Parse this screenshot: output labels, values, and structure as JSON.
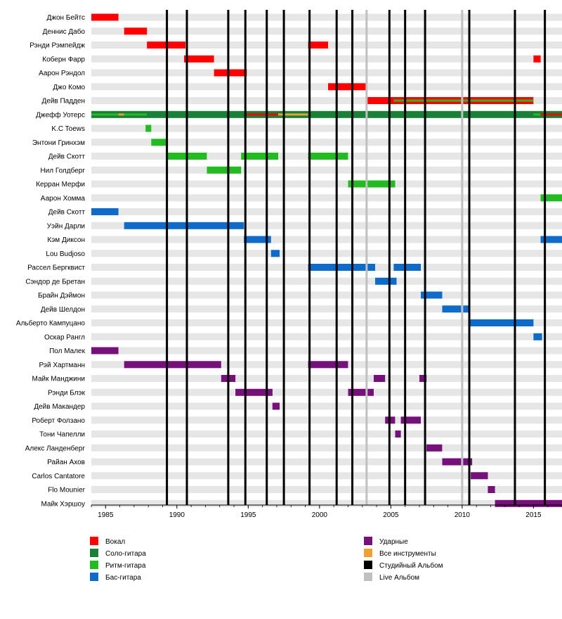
{
  "chart_data": {
    "type": "timeline",
    "xlim": [
      1984,
      2017
    ],
    "x_ticks": [
      1985,
      1990,
      1995,
      2000,
      2005,
      2010,
      2015
    ],
    "members": [
      {
        "name": "Джон Бейтс",
        "bars": [
          {
            "role": "vocals",
            "start": 1984.0,
            "end": 1985.9
          }
        ]
      },
      {
        "name": "Деннис Дабо",
        "bars": [
          {
            "role": "vocals",
            "start": 1986.3,
            "end": 1987.9
          }
        ]
      },
      {
        "name": "Рэнди Рэмпейдж",
        "bars": [
          {
            "role": "vocals",
            "start": 1987.9,
            "end": 1990.6
          },
          {
            "role": "vocals",
            "start": 1999.2,
            "end": 2000.6
          }
        ]
      },
      {
        "name": "Коберн Фарр",
        "bars": [
          {
            "role": "vocals",
            "start": 1990.5,
            "end": 1992.6
          },
          {
            "role": "vocals",
            "start": 2015.0,
            "end": 2015.5
          }
        ]
      },
      {
        "name": "Аарон Рэндол",
        "bars": [
          {
            "role": "vocals",
            "start": 1992.6,
            "end": 1994.9
          }
        ]
      },
      {
        "name": "Джо Комо",
        "bars": [
          {
            "role": "vocals",
            "start": 2000.6,
            "end": 2003.3
          }
        ]
      },
      {
        "name": "Дейв Падден",
        "bars": [
          {
            "role": "vocals",
            "start": 2003.3,
            "end": 2015.0
          },
          {
            "role": "rhythm",
            "start": 2005.2,
            "end": 2015.0,
            "thin": true
          }
        ]
      },
      {
        "name": "Джефф Уотерс",
        "bars": [
          {
            "role": "lead",
            "start": 1984.0,
            "end": 2017.0
          },
          {
            "role": "rhythm",
            "start": 1984.0,
            "end": 1985.9,
            "thin": true
          },
          {
            "role": "all",
            "start": 1985.9,
            "end": 1986.3,
            "thin": true
          },
          {
            "role": "rhythm",
            "start": 1986.3,
            "end": 1987.9,
            "thin": true
          },
          {
            "role": "vocals",
            "start": 1994.9,
            "end": 1997.1,
            "thin": true
          },
          {
            "role": "all",
            "start": 1997.1,
            "end": 1999.2,
            "thin": true
          },
          {
            "role": "rhythm",
            "start": 2015.0,
            "end": 2015.5,
            "thin": true
          },
          {
            "role": "vocals",
            "start": 2015.5,
            "end": 2017.0,
            "thin": true
          }
        ]
      },
      {
        "name": "K.C Toews",
        "bars": [
          {
            "role": "rhythm",
            "start": 1987.8,
            "end": 1988.2
          }
        ]
      },
      {
        "name": "Энтони Гринхэм",
        "bars": [
          {
            "role": "rhythm",
            "start": 1988.2,
            "end": 1989.3
          }
        ]
      },
      {
        "name": "Дейв Скотт",
        "bars": [
          {
            "role": "rhythm",
            "start": 1989.3,
            "end": 1992.1
          },
          {
            "role": "rhythm",
            "start": 1994.5,
            "end": 1997.1
          },
          {
            "role": "rhythm",
            "start": 1999.2,
            "end": 2002.0
          }
        ]
      },
      {
        "name": "Нил Голдберг",
        "bars": [
          {
            "role": "rhythm",
            "start": 1992.1,
            "end": 1994.5
          }
        ]
      },
      {
        "name": "Керран Мерфи",
        "bars": [
          {
            "role": "rhythm",
            "start": 2002.0,
            "end": 2005.3
          }
        ]
      },
      {
        "name": "Аарон Хомма",
        "bars": [
          {
            "role": "rhythm",
            "start": 2015.5,
            "end": 2017.0
          }
        ]
      },
      {
        "name": "Дейв Скотт",
        "bars": [
          {
            "role": "bass",
            "start": 1984.0,
            "end": 1985.9
          }
        ]
      },
      {
        "name": "Уэйн Дарли",
        "bars": [
          {
            "role": "bass",
            "start": 1986.3,
            "end": 1994.7
          }
        ]
      },
      {
        "name": "Кэм Диксон",
        "bars": [
          {
            "role": "bass",
            "start": 1994.7,
            "end": 1996.6
          },
          {
            "role": "bass",
            "start": 2015.5,
            "end": 2017.0
          }
        ]
      },
      {
        "name": "Lou Budjoso",
        "bars": [
          {
            "role": "bass",
            "start": 1996.6,
            "end": 1997.2
          }
        ]
      },
      {
        "name": "Рассел Бергквист",
        "bars": [
          {
            "role": "bass",
            "start": 1999.2,
            "end": 2003.9
          },
          {
            "role": "bass",
            "start": 2005.2,
            "end": 2007.1
          }
        ]
      },
      {
        "name": "Сэндор де Бретан",
        "bars": [
          {
            "role": "bass",
            "start": 2003.9,
            "end": 2005.4
          }
        ]
      },
      {
        "name": "Брайн Дэймон",
        "bars": [
          {
            "role": "bass",
            "start": 2007.1,
            "end": 2008.6
          }
        ]
      },
      {
        "name": "Дейв Шелдон",
        "bars": [
          {
            "role": "bass",
            "start": 2008.6,
            "end": 2010.5
          }
        ]
      },
      {
        "name": "Альберто Кампуцано",
        "bars": [
          {
            "role": "bass",
            "start": 2010.5,
            "end": 2015.0
          }
        ]
      },
      {
        "name": "Оскар Рангл",
        "bars": [
          {
            "role": "bass",
            "start": 2015.0,
            "end": 2015.6
          }
        ]
      },
      {
        "name": "Пол Малек",
        "bars": [
          {
            "role": "drums",
            "start": 1984.0,
            "end": 1985.9
          }
        ]
      },
      {
        "name": "Рэй Хартманн",
        "bars": [
          {
            "role": "drums",
            "start": 1986.3,
            "end": 1993.1
          },
          {
            "role": "drums",
            "start": 1999.2,
            "end": 2002.0
          }
        ]
      },
      {
        "name": "Майк Манджини",
        "bars": [
          {
            "role": "drums",
            "start": 1993.1,
            "end": 1994.1
          },
          {
            "role": "drums",
            "start": 2003.8,
            "end": 2004.6
          },
          {
            "role": "drums",
            "start": 2007.0,
            "end": 2007.5
          }
        ]
      },
      {
        "name": "Рэнди Блэк",
        "bars": [
          {
            "role": "drums",
            "start": 1994.1,
            "end": 1996.7
          },
          {
            "role": "drums",
            "start": 2002.0,
            "end": 2003.8
          }
        ]
      },
      {
        "name": "Дейв Макандер",
        "bars": [
          {
            "role": "drums",
            "start": 1996.7,
            "end": 1997.2
          }
        ]
      },
      {
        "name": "Роберт Фолзано",
        "bars": [
          {
            "role": "drums",
            "start": 2004.6,
            "end": 2005.3
          },
          {
            "role": "drums",
            "start": 2005.7,
            "end": 2007.1
          }
        ]
      },
      {
        "name": "Тони Чапелли",
        "bars": [
          {
            "role": "drums",
            "start": 2005.3,
            "end": 2005.7
          }
        ]
      },
      {
        "name": "Алекс Ланденберг",
        "bars": [
          {
            "role": "drums",
            "start": 2007.5,
            "end": 2008.6
          }
        ]
      },
      {
        "name": "Райан Ахов",
        "bars": [
          {
            "role": "drums",
            "start": 2008.6,
            "end": 2010.7
          }
        ]
      },
      {
        "name": "Carlos Cantatore",
        "bars": [
          {
            "role": "drums",
            "start": 2010.6,
            "end": 2011.8
          }
        ]
      },
      {
        "name": "Flo Mounier",
        "bars": [
          {
            "role": "drums",
            "start": 2011.8,
            "end": 2012.3
          }
        ]
      },
      {
        "name": "Майк Хэршоу",
        "bars": [
          {
            "role": "drums",
            "start": 2012.3,
            "end": 2017.0
          }
        ]
      }
    ],
    "studio_albums": [
      1989.3,
      1990.7,
      1993.6,
      1994.8,
      1996.3,
      1997.5,
      1999.3,
      2001.2,
      2002.3,
      2004.9,
      2006.0,
      2007.4,
      2010.5,
      2013.7,
      2015.8
    ],
    "live_albums": [
      2003.3,
      2010.0
    ],
    "legend_position": "bottom",
    "legend": [
      {
        "role": "vocals",
        "label": "Вокал",
        "color": "#ff0000"
      },
      {
        "role": "lead",
        "label": "Соло-гитара",
        "color": "#1a7f37"
      },
      {
        "role": "rhythm",
        "label": "Ритм-гитара",
        "color": "#22bb22"
      },
      {
        "role": "bass",
        "label": "Бас-гитара",
        "color": "#0f6bca"
      },
      {
        "role": "drums",
        "label": "Ударные",
        "color": "#76107a"
      },
      {
        "role": "all",
        "label": "Все инструменты",
        "color": "#f0a030"
      },
      {
        "role": "studio",
        "label": "Студийный Альбом",
        "color": "#000000"
      },
      {
        "role": "live",
        "label": "Live Альбом",
        "color": "#c0c0c0"
      }
    ]
  }
}
